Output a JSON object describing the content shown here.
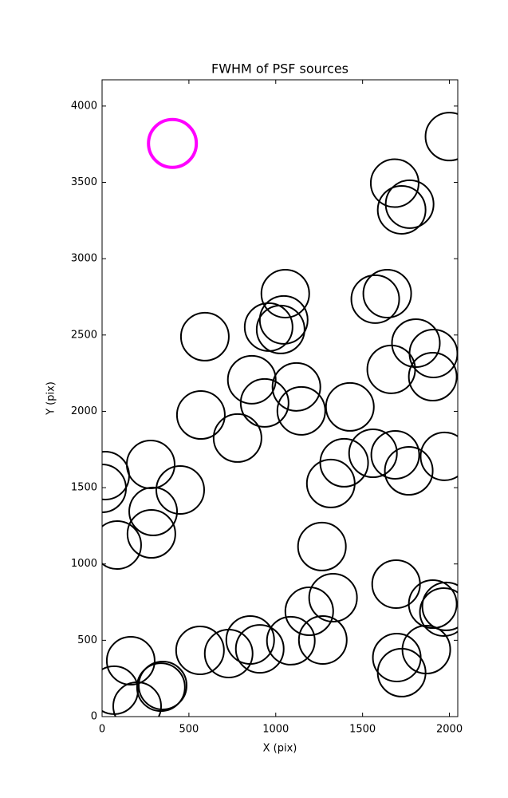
{
  "chart_data": {
    "type": "scatter",
    "title": "FWHM of PSF sources",
    "x_label": "X (pix)",
    "y_label": "Y (pix)",
    "xlim": [
      0,
      2048
    ],
    "ylim": [
      0,
      4172
    ],
    "xticks": [
      0,
      500,
      1000,
      1500,
      2000
    ],
    "yticks": [
      0,
      500,
      1000,
      1500,
      2000,
      2500,
      3000,
      3500,
      4000
    ],
    "series": [
      {
        "color": "#000000",
        "x": [
          2000,
          1685,
          1771,
          1725,
          1055,
          1642,
          1573,
          1046,
          959,
          1028,
          592,
          1807,
          1908,
          1904,
          1665,
          862,
          1119,
          936,
          1147,
          1427,
          569,
          780,
          18,
          0,
          280,
          450,
          294,
          284,
          87,
          1394,
          1317,
          1560,
          1688,
          1766,
          1972,
          1266,
          1693,
          1330,
          1193,
          1904,
          1968,
          1982,
          564,
          729,
          853,
          908,
          1087,
          1271,
          1697,
          1867,
          1725,
          165,
          69,
          202,
          349,
          339
        ],
        "values": [
          3800,
          3495,
          3357,
          3320,
          2771,
          2771,
          2735,
          2599,
          2552,
          2536,
          2489,
          2447,
          2379,
          2227,
          2275,
          2207,
          2160,
          2055,
          2003,
          2029,
          1976,
          1825,
          1579,
          1495,
          1652,
          1485,
          1344,
          1197,
          1124,
          1663,
          1527,
          1725,
          1715,
          1610,
          1705,
          1114,
          868,
          779,
          690,
          737,
          685,
          722,
          434,
          413,
          502,
          444,
          497,
          502,
          387,
          439,
          288,
          366,
          173,
          68,
          204,
          193
        ]
      },
      {
        "color": "#ff00ff",
        "x": [
          405
        ],
        "values": [
          3755
        ]
      }
    ]
  }
}
